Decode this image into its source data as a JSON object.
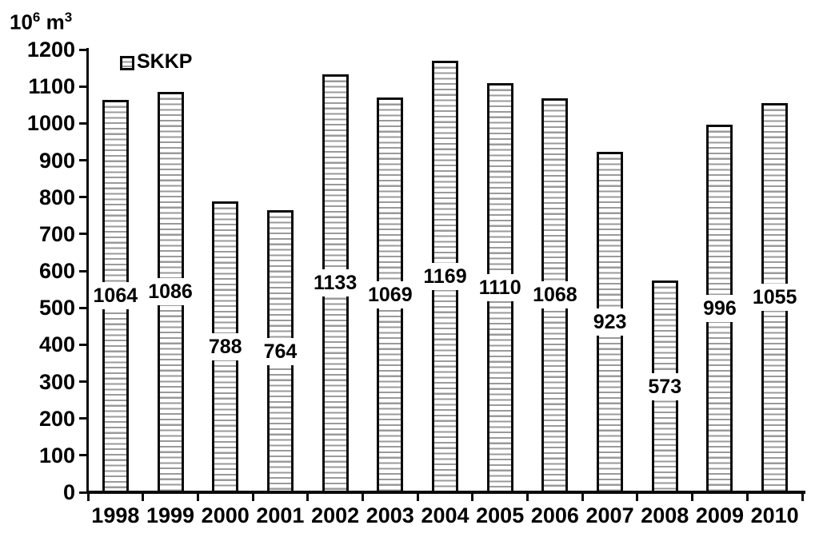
{
  "chart_data": {
    "type": "bar",
    "title": "",
    "ylabel_parts": {
      "base": "10",
      "exponent": "6",
      "unit": "m",
      "unit_exponent": "3"
    },
    "categories": [
      "1998",
      "1999",
      "2000",
      "2001",
      "2002",
      "2003",
      "2004",
      "2005",
      "2006",
      "2007",
      "2008",
      "2009",
      "2010"
    ],
    "series": [
      {
        "name": "SKKP",
        "values": [
          1064,
          1086,
          788,
          764,
          1133,
          1069,
          1169,
          1110,
          1068,
          923,
          573,
          996,
          1055
        ]
      }
    ],
    "ylim": [
      0,
      1200
    ],
    "yticks": [
      0,
      100,
      200,
      300,
      400,
      500,
      600,
      700,
      800,
      900,
      1000,
      1100,
      1200
    ],
    "grid": false,
    "legend_position": "inside-top-left",
    "bar_pattern": "horizontal-hatch",
    "bar_value_label_position": "middle-of-bar",
    "colors": {
      "background": "#ffffff",
      "bar_fill": "#ffffff",
      "bar_border": "#0a0a0a",
      "hatch_line": "#9a9a9a",
      "text": "#000000"
    }
  }
}
